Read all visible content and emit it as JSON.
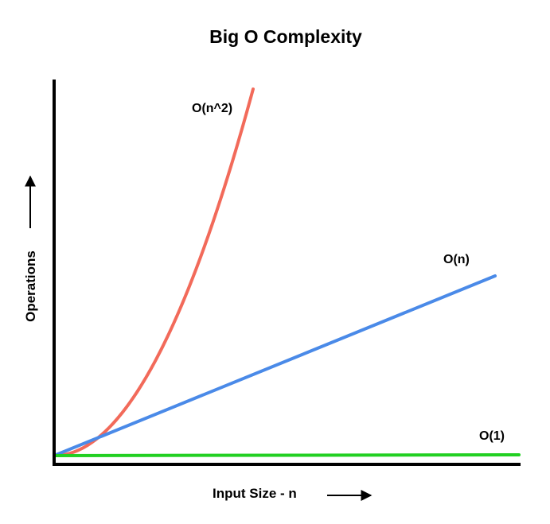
{
  "chart_data": {
    "type": "line",
    "title": "Big O Complexity",
    "xlabel": "Input Size - n",
    "ylabel": "Operations",
    "grid": false,
    "legend": "none",
    "colors": {
      "axis": "#000000",
      "quadratic": "#f26a5a",
      "linear": "#4a8ae8",
      "constant": "#22d022"
    },
    "series": [
      {
        "name": "O(n^2)",
        "kind": "quadratic"
      },
      {
        "name": "O(n)",
        "kind": "linear"
      },
      {
        "name": "O(1)",
        "kind": "constant"
      }
    ]
  }
}
